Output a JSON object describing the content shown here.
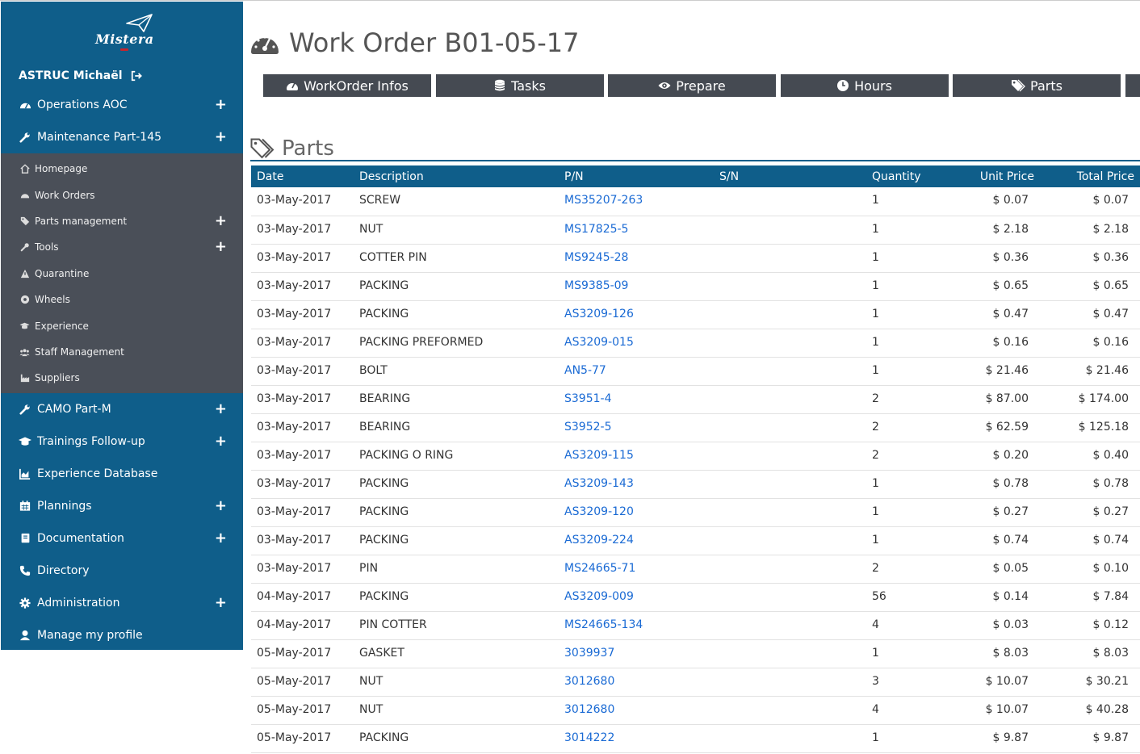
{
  "brand": {
    "name": "Mistera"
  },
  "user": {
    "name": "ASTRUC Michaël"
  },
  "nav": {
    "operations": "Operations AOC",
    "maintenance": "Maintenance Part-145",
    "sub": {
      "homepage": "Homepage",
      "work_orders": "Work Orders",
      "parts_management": "Parts management",
      "tools": "Tools",
      "quarantine": "Quarantine",
      "wheels": "Wheels",
      "experience": "Experience",
      "staff_management": "Staff Management",
      "suppliers": "Suppliers"
    },
    "camo": "CAMO Part-M",
    "trainings": "Trainings Follow-up",
    "experience_db": "Experience Database",
    "plannings": "Plannings",
    "documentation": "Documentation",
    "directory": "Directory",
    "administration": "Administration",
    "profile": "Manage my profile"
  },
  "page": {
    "title": "Work Order B01-05-17",
    "section_title": "Parts"
  },
  "tabs": {
    "workorder_infos": "WorkOrder Infos",
    "tasks": "Tasks",
    "prepare": "Prepare",
    "hours": "Hours",
    "parts": "Parts"
  },
  "table": {
    "headers": {
      "date": "Date",
      "description": "Description",
      "pn": "P/N",
      "sn": "S/N",
      "quantity": "Quantity",
      "unit_price": "Unit Price",
      "total_price": "Total Price"
    },
    "rows": [
      {
        "date": "03-May-2017",
        "description": "SCREW",
        "pn": "MS35207-263",
        "sn": "",
        "quantity": "1",
        "unit_price": "$ 0.07",
        "total_price": "$ 0.07"
      },
      {
        "date": "03-May-2017",
        "description": "NUT",
        "pn": "MS17825-5",
        "sn": "",
        "quantity": "1",
        "unit_price": "$ 2.18",
        "total_price": "$ 2.18"
      },
      {
        "date": "03-May-2017",
        "description": "COTTER PIN",
        "pn": "MS9245-28",
        "sn": "",
        "quantity": "1",
        "unit_price": "$ 0.36",
        "total_price": "$ 0.36"
      },
      {
        "date": "03-May-2017",
        "description": "PACKING",
        "pn": "MS9385-09",
        "sn": "",
        "quantity": "1",
        "unit_price": "$ 0.65",
        "total_price": "$ 0.65"
      },
      {
        "date": "03-May-2017",
        "description": "PACKING",
        "pn": "AS3209-126",
        "sn": "",
        "quantity": "1",
        "unit_price": "$ 0.47",
        "total_price": "$ 0.47"
      },
      {
        "date": "03-May-2017",
        "description": "PACKING PREFORMED",
        "pn": "AS3209-015",
        "sn": "",
        "quantity": "1",
        "unit_price": "$ 0.16",
        "total_price": "$ 0.16"
      },
      {
        "date": "03-May-2017",
        "description": "BOLT",
        "pn": "AN5-77",
        "sn": "",
        "quantity": "1",
        "unit_price": "$ 21.46",
        "total_price": "$ 21.46"
      },
      {
        "date": "03-May-2017",
        "description": "BEARING",
        "pn": "S3951-4",
        "sn": "",
        "quantity": "2",
        "unit_price": "$ 87.00",
        "total_price": "$ 174.00"
      },
      {
        "date": "03-May-2017",
        "description": "BEARING",
        "pn": "S3952-5",
        "sn": "",
        "quantity": "2",
        "unit_price": "$ 62.59",
        "total_price": "$ 125.18"
      },
      {
        "date": "03-May-2017",
        "description": "PACKING O RING",
        "pn": "AS3209-115",
        "sn": "",
        "quantity": "2",
        "unit_price": "$ 0.20",
        "total_price": "$ 0.40"
      },
      {
        "date": "03-May-2017",
        "description": "PACKING",
        "pn": "AS3209-143",
        "sn": "",
        "quantity": "1",
        "unit_price": "$ 0.78",
        "total_price": "$ 0.78"
      },
      {
        "date": "03-May-2017",
        "description": "PACKING",
        "pn": "AS3209-120",
        "sn": "",
        "quantity": "1",
        "unit_price": "$ 0.27",
        "total_price": "$ 0.27"
      },
      {
        "date": "03-May-2017",
        "description": "PACKING",
        "pn": "AS3209-224",
        "sn": "",
        "quantity": "1",
        "unit_price": "$ 0.74",
        "total_price": "$ 0.74"
      },
      {
        "date": "03-May-2017",
        "description": "PIN",
        "pn": "MS24665-71",
        "sn": "",
        "quantity": "2",
        "unit_price": "$ 0.05",
        "total_price": "$ 0.10"
      },
      {
        "date": "04-May-2017",
        "description": "PACKING",
        "pn": "AS3209-009",
        "sn": "",
        "quantity": "56",
        "unit_price": "$ 0.14",
        "total_price": "$ 7.84"
      },
      {
        "date": "04-May-2017",
        "description": "PIN COTTER",
        "pn": "MS24665-134",
        "sn": "",
        "quantity": "4",
        "unit_price": "$ 0.03",
        "total_price": "$ 0.12"
      },
      {
        "date": "05-May-2017",
        "description": "GASKET",
        "pn": "3039937",
        "sn": "",
        "quantity": "1",
        "unit_price": "$ 8.03",
        "total_price": "$ 8.03"
      },
      {
        "date": "05-May-2017",
        "description": "NUT",
        "pn": "3012680",
        "sn": "",
        "quantity": "3",
        "unit_price": "$ 10.07",
        "total_price": "$ 30.21"
      },
      {
        "date": "05-May-2017",
        "description": "NUT",
        "pn": "3012680",
        "sn": "",
        "quantity": "4",
        "unit_price": "$ 10.07",
        "total_price": "$ 40.28"
      },
      {
        "date": "05-May-2017",
        "description": "PACKING",
        "pn": "3014222",
        "sn": "",
        "quantity": "1",
        "unit_price": "$ 9.87",
        "total_price": "$ 9.87"
      }
    ]
  },
  "colors": {
    "sidebar": "#0f5e8a",
    "submenu": "#4a4f58",
    "tab": "#454a52",
    "link": "#1a6ad4"
  }
}
